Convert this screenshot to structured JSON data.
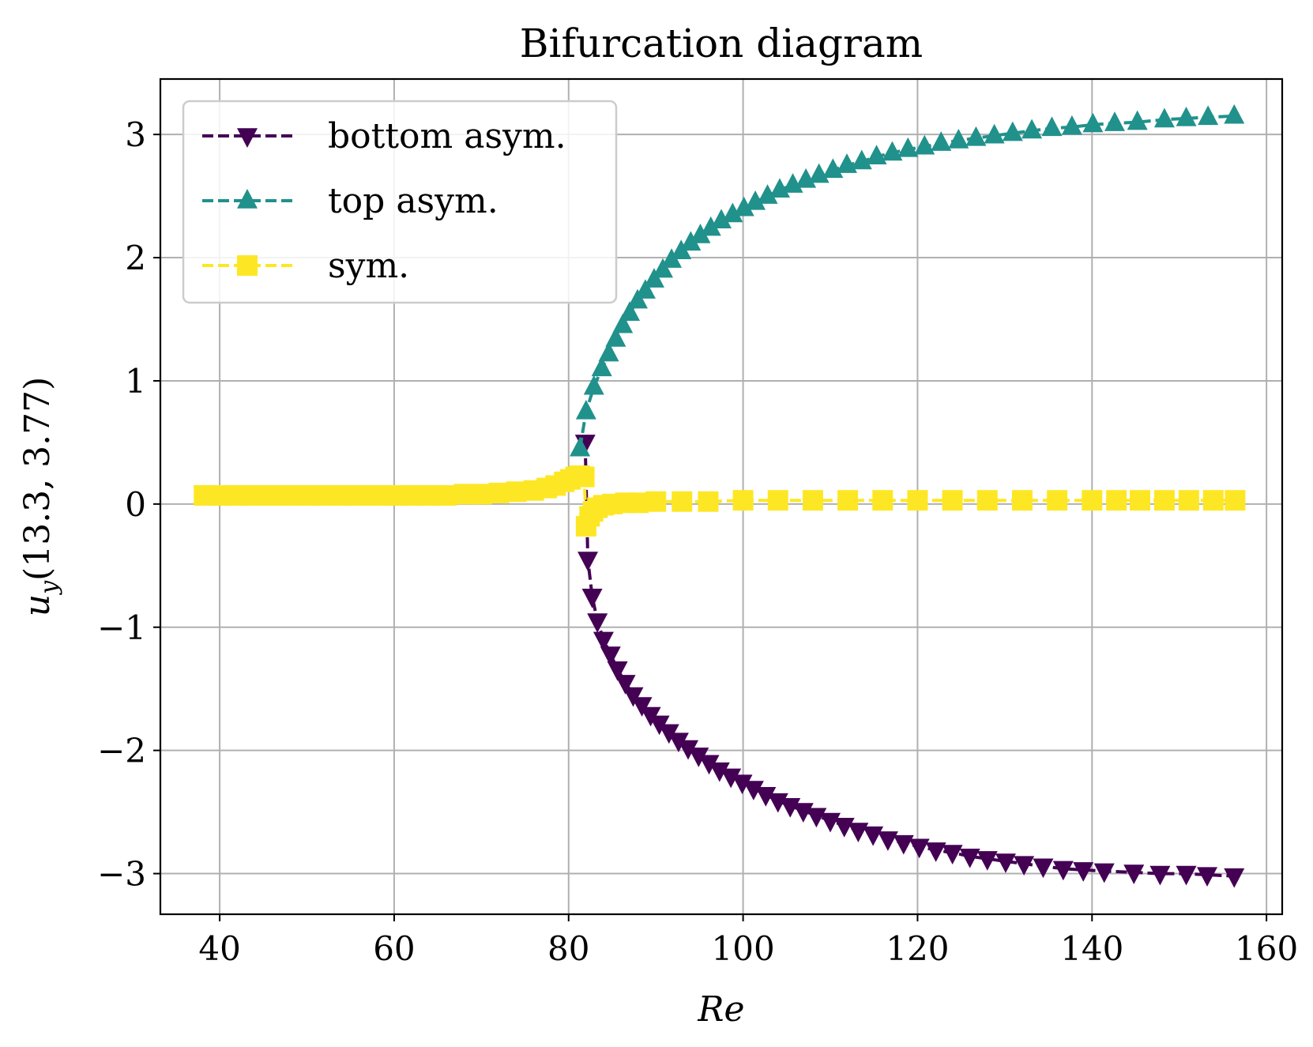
{
  "chart_data": {
    "type": "line",
    "title": "Bifurcation diagram",
    "xlabel": "Re",
    "ylabel": "u_y(13.3, 3.77)",
    "ylabel_parts": {
      "var": "u",
      "sub": "y",
      "args": "(13.3, 3.77)"
    },
    "xlim": [
      33.2,
      161.8
    ],
    "ylim": [
      -3.33,
      3.45
    ],
    "xticks": [
      40,
      60,
      80,
      100,
      120,
      140,
      160
    ],
    "xtick_labels": [
      "40",
      "60",
      "80",
      "100",
      "120",
      "140",
      "160"
    ],
    "yticks": [
      -3,
      -2,
      -1,
      0,
      1,
      2,
      3
    ],
    "ytick_labels": [
      "−3",
      "−2",
      "−1",
      "0",
      "1",
      "2",
      "3"
    ],
    "grid": true,
    "legend_position": "top-left",
    "legend": [
      "bottom asym.",
      "top asym.",
      "sym."
    ],
    "series": [
      {
        "name": "bottom asym.",
        "color": "#440154",
        "marker": "triangle-down",
        "x": [
          81.9,
          82.2,
          82.7,
          83.3,
          84.0,
          84.8,
          85.6,
          86.5,
          87.4,
          88.4,
          89.4,
          90.4,
          91.5,
          92.6,
          93.7,
          94.9,
          96.1,
          97.3,
          98.6,
          99.9,
          101.2,
          102.6,
          104.0,
          105.4,
          106.9,
          108.4,
          110.0,
          111.6,
          113.2,
          114.9,
          116.6,
          118.4,
          120.2,
          122.1,
          124.0,
          126.0,
          128.0,
          130.1,
          132.2,
          134.4,
          136.7,
          139.0,
          141.4,
          144.8,
          147.8,
          150.8,
          153.2,
          156.3
        ],
        "values": [
          0.5,
          -0.45,
          -0.75,
          -0.95,
          -1.1,
          -1.22,
          -1.34,
          -1.45,
          -1.55,
          -1.63,
          -1.71,
          -1.78,
          -1.85,
          -1.92,
          -1.98,
          -2.04,
          -2.1,
          -2.16,
          -2.21,
          -2.26,
          -2.31,
          -2.36,
          -2.41,
          -2.45,
          -2.49,
          -2.53,
          -2.57,
          -2.61,
          -2.65,
          -2.68,
          -2.72,
          -2.75,
          -2.78,
          -2.81,
          -2.83,
          -2.86,
          -2.88,
          -2.9,
          -2.92,
          -2.94,
          -2.96,
          -2.97,
          -2.98,
          -2.99,
          -3.0,
          -3.0,
          -3.01,
          -3.02
        ]
      },
      {
        "name": "top asym.",
        "color": "#21918c",
        "marker": "triangle-up",
        "x": [
          81.3,
          82.0,
          82.9,
          83.8,
          84.6,
          85.4,
          86.2,
          87.0,
          87.9,
          88.8,
          89.8,
          90.8,
          91.8,
          92.9,
          94.0,
          95.1,
          96.3,
          97.5,
          98.8,
          100.1,
          101.4,
          102.8,
          104.2,
          105.7,
          107.2,
          108.7,
          110.3,
          111.9,
          113.6,
          115.3,
          117.1,
          118.9,
          120.8,
          122.7,
          124.7,
          126.7,
          128.8,
          130.9,
          133.1,
          135.4,
          137.7,
          140.1,
          142.6,
          145.2,
          148.3,
          150.8,
          153.3,
          156.3
        ],
        "values": [
          0.45,
          0.75,
          0.95,
          1.1,
          1.22,
          1.34,
          1.45,
          1.55,
          1.65,
          1.73,
          1.82,
          1.9,
          1.98,
          2.05,
          2.12,
          2.18,
          2.24,
          2.3,
          2.35,
          2.4,
          2.45,
          2.5,
          2.55,
          2.59,
          2.63,
          2.67,
          2.71,
          2.75,
          2.78,
          2.82,
          2.85,
          2.88,
          2.9,
          2.93,
          2.95,
          2.97,
          2.99,
          3.01,
          3.03,
          3.05,
          3.06,
          3.08,
          3.09,
          3.1,
          3.12,
          3.13,
          3.14,
          3.15
        ]
      },
      {
        "name": "sym.",
        "color": "#fde725",
        "marker": "square",
        "x": [
          38.2,
          40.0,
          42.0,
          44.0,
          46.0,
          48.0,
          50.0,
          52.0,
          54.0,
          56.0,
          58.0,
          60.0,
          62.0,
          64.0,
          66.0,
          68.0,
          70.0,
          72.0,
          74.0,
          76.0,
          77.5,
          78.5,
          79.5,
          80.2,
          80.8,
          81.3,
          81.8,
          82.0,
          82.4,
          82.8,
          83.3,
          84.0,
          85.0,
          86.5,
          88.0,
          90.0,
          93.0,
          96.0,
          100.0,
          104.0,
          108.0,
          112.0,
          116.0,
          120.0,
          124.0,
          128.0,
          132.0,
          136.0,
          140.0,
          142.8,
          145.5,
          148.3,
          151.1,
          153.9,
          156.4
        ],
        "values": [
          0.07,
          0.07,
          0.07,
          0.07,
          0.07,
          0.07,
          0.07,
          0.07,
          0.07,
          0.07,
          0.07,
          0.07,
          0.07,
          0.07,
          0.07,
          0.08,
          0.08,
          0.09,
          0.1,
          0.11,
          0.13,
          0.15,
          0.18,
          0.2,
          0.22,
          0.23,
          0.22,
          -0.18,
          -0.1,
          -0.06,
          -0.03,
          -0.01,
          0.0,
          0.01,
          0.01,
          0.02,
          0.02,
          0.02,
          0.03,
          0.03,
          0.03,
          0.03,
          0.03,
          0.03,
          0.03,
          0.03,
          0.03,
          0.03,
          0.03,
          0.03,
          0.03,
          0.03,
          0.03,
          0.03,
          0.03
        ]
      }
    ]
  }
}
